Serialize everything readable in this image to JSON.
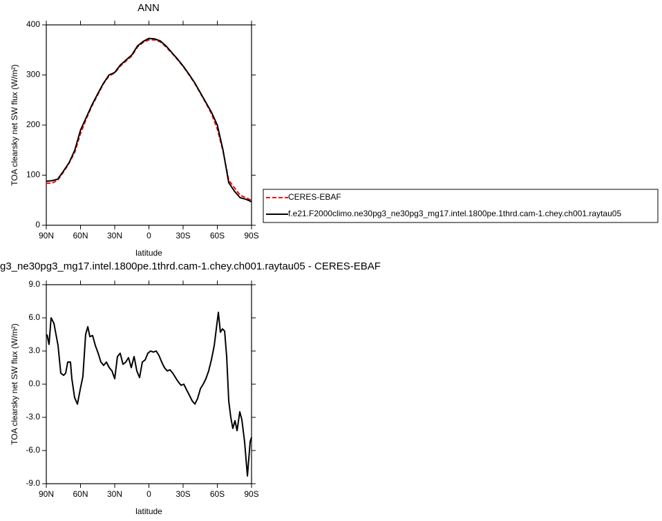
{
  "chart_data": [
    {
      "type": "line",
      "title": "ANN",
      "x_label": "latitude",
      "y_label": "TOA clearsky net SW flux (W/m²)",
      "x": [
        90,
        85,
        80,
        75,
        70,
        65,
        60,
        55,
        50,
        45,
        40,
        35,
        30,
        25,
        20,
        15,
        10,
        5,
        0,
        -5,
        -10,
        -15,
        -20,
        -25,
        -30,
        -35,
        -40,
        -45,
        -50,
        -55,
        -60,
        -65,
        -70,
        -75,
        -80,
        -85,
        -90
      ],
      "series": [
        {
          "name": "CERES-EBAF",
          "color": "#ff0000",
          "dash": true,
          "values": [
            84,
            84,
            90,
            106,
            124,
            146,
            183,
            212,
            238,
            260,
            282,
            298,
            304,
            318,
            328,
            338,
            356,
            365,
            370,
            370,
            366,
            356,
            344,
            331,
            317,
            301,
            284,
            264,
            244,
            222,
            192,
            148,
            90,
            75,
            60,
            55,
            50
          ]
        },
        {
          "name": "f.e21.F2000climo.ne30pg3_ne30pg3_mg17.intel.1800pe.1thrd.cam-1.chey.ch001.raytau05",
          "color": "#000000",
          "dash": false,
          "values": [
            88,
            89,
            92,
            108,
            125,
            150,
            190,
            215,
            240,
            262,
            283,
            300,
            305,
            320,
            330,
            340,
            358,
            367,
            373,
            372,
            368,
            358,
            345,
            332,
            318,
            302,
            285,
            265,
            245,
            225,
            200,
            150,
            85,
            68,
            55,
            52,
            47
          ]
        }
      ],
      "xlim": [
        90,
        -90
      ],
      "xticks": [
        {
          "value": 90,
          "label": "90N"
        },
        {
          "value": 60,
          "label": "60N"
        },
        {
          "value": 30,
          "label": "30N"
        },
        0,
        {
          "value": -30,
          "label": "30S"
        },
        {
          "value": -60,
          "label": "60S"
        },
        {
          "value": -90,
          "label": "90S"
        }
      ],
      "ylim": [
        0,
        400
      ],
      "yticks": [
        0,
        100,
        200,
        300,
        400
      ],
      "legend": "right"
    },
    {
      "type": "line",
      "title": "g3_ne30pg3_mg17.intel.1800pe.1thrd.cam-1.chey.ch001.raytau05 - CERES-EBAF",
      "x_label": "latitude",
      "y_label": "TOA clearsky net SW flux (W/m²)",
      "x": [
        89.4,
        87.6,
        85.8,
        83.3,
        79.7,
        77.3,
        74.8,
        73,
        71.2,
        68.8,
        67.6,
        65.2,
        62.7,
        60.3,
        57.9,
        55.5,
        53.6,
        51.8,
        49.4,
        47,
        44.5,
        42.1,
        39.7,
        37.3,
        34.8,
        32.4,
        30,
        27.6,
        25.2,
        22.7,
        20.3,
        17.9,
        15.5,
        13,
        10.6,
        8.2,
        5.8,
        3.3,
        0.9,
        -1.5,
        -3.9,
        -6.4,
        -8.8,
        -11.2,
        -13.6,
        -16.1,
        -18.5,
        -20.9,
        -23.3,
        -25.8,
        -28.2,
        -30.6,
        -33,
        -35.5,
        -37.9,
        -40.3,
        -42.7,
        -45.2,
        -47.6,
        -50,
        -52.4,
        -54.8,
        -57.3,
        -59.7,
        -60.9,
        -62.7,
        -64.5,
        -66.4,
        -68.2,
        -70,
        -71.8,
        -73.6,
        -75.5,
        -77.3,
        -79.7,
        -81.5,
        -83.9,
        -86.4,
        -88.8,
        -90
      ],
      "series": [
        {
          "color": "#000000",
          "dash": false,
          "values": [
            4.5,
            3.6,
            6.0,
            5.5,
            3.5,
            1.0,
            0.8,
            1.0,
            2.0,
            2.0,
            0.5,
            -1.2,
            -1.8,
            -0.5,
            0.7,
            4.5,
            5.2,
            4.3,
            4.4,
            3.5,
            2.8,
            2.0,
            1.7,
            2.0,
            1.5,
            1.2,
            0.5,
            2.5,
            2.8,
            1.8,
            2.0,
            2.4,
            1.5,
            2.5,
            1.2,
            0.6,
            2.0,
            2.2,
            2.8,
            3.0,
            2.9,
            3.0,
            2.6,
            2.0,
            1.5,
            1.2,
            1.3,
            1.0,
            0.6,
            0.2,
            -0.1,
            0,
            -0.5,
            -1.0,
            -1.5,
            -1.8,
            -1.3,
            -0.4,
            0,
            0.5,
            1.2,
            2.2,
            3.5,
            5.5,
            6.5,
            4.7,
            5.0,
            4.8,
            2.5,
            -1.5,
            -3.0,
            -4.0,
            -3.3,
            -4.2,
            -2.5,
            -3.2,
            -5.2,
            -8.3,
            -5.2,
            -4.8
          ]
        }
      ],
      "xlim": [
        90,
        -90
      ],
      "xticks": [
        {
          "value": 90,
          "label": "90N"
        },
        {
          "value": 60,
          "label": "60N"
        },
        {
          "value": 30,
          "label": "30N"
        },
        0,
        {
          "value": -30,
          "label": "30S"
        },
        {
          "value": -60,
          "label": "60S"
        },
        {
          "value": -90,
          "label": "90S"
        }
      ],
      "ylim": [
        -9,
        9
      ],
      "yticks": [
        {
          "value": -9,
          "label": "-9.0"
        },
        {
          "value": -6,
          "label": "-6.0"
        },
        {
          "value": -3,
          "label": "-3.0"
        },
        {
          "value": 0,
          "label": "0.0"
        },
        {
          "value": 3,
          "label": "3.0"
        },
        {
          "value": 6,
          "label": "6.0"
        },
        {
          "value": 9,
          "label": "9.0"
        }
      ]
    }
  ]
}
